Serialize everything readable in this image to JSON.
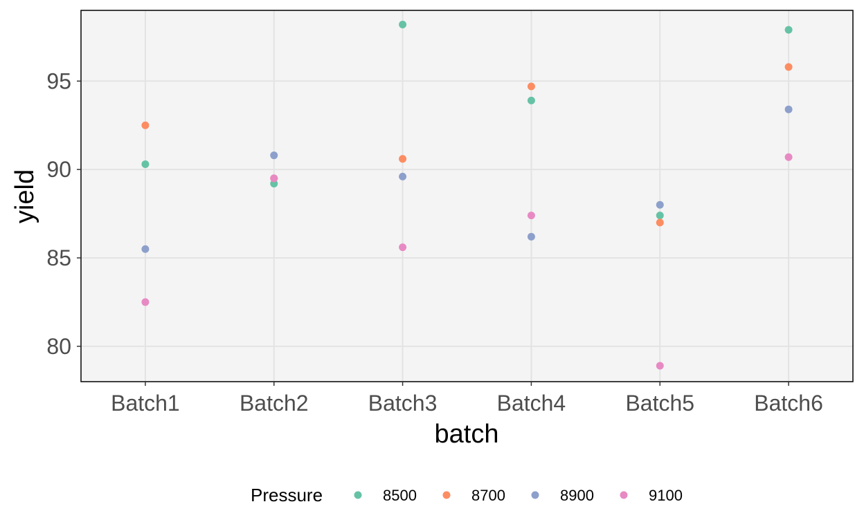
{
  "chart_data": {
    "type": "scatter",
    "title": "",
    "xlabel": "batch",
    "ylabel": "yield",
    "categories": [
      "Batch1",
      "Batch2",
      "Batch3",
      "Batch4",
      "Batch5",
      "Batch6"
    ],
    "y_ticks": [
      80,
      85,
      90,
      95
    ],
    "ylim": [
      78,
      99
    ],
    "grid": true,
    "background": "#f4f4f4",
    "legend": {
      "title": "Pressure",
      "position": "bottom"
    },
    "series": [
      {
        "name": "8500",
        "color": "#66c2a5",
        "values": [
          90.3,
          89.2,
          98.2,
          93.9,
          87.4,
          97.9
        ]
      },
      {
        "name": "8700",
        "color": "#fc8d62",
        "values": [
          92.5,
          89.5,
          90.6,
          94.7,
          87.0,
          95.8
        ]
      },
      {
        "name": "8900",
        "color": "#8da0cb",
        "values": [
          85.5,
          90.8,
          89.6,
          86.2,
          88.0,
          93.4
        ]
      },
      {
        "name": "9100",
        "color": "#e78ac3",
        "values": [
          82.5,
          89.5,
          85.6,
          87.4,
          78.9,
          90.7
        ]
      }
    ]
  }
}
